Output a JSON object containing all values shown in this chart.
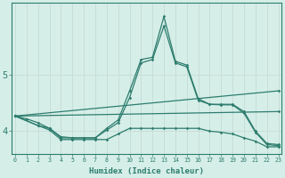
{
  "xlabel": "Humidex (Indice chaleur)",
  "background_color": "#d6eee8",
  "line_color": "#2d7d6e",
  "grid_color": "#c8ddd8",
  "xmin": 0,
  "xmax": 23,
  "ylim": [
    3.6,
    6.3
  ],
  "yticks": [
    4,
    5
  ],
  "lines": [
    {
      "x": [
        0,
        1,
        2,
        3,
        4,
        5,
        6,
        7,
        8,
        9,
        10,
        11,
        12,
        13,
        14,
        15,
        16,
        17,
        18,
        19,
        20,
        21,
        22,
        23
      ],
      "y": [
        4.27,
        4.22,
        4.15,
        4.05,
        3.88,
        3.88,
        3.88,
        3.88,
        4.05,
        4.2,
        4.72,
        5.28,
        5.32,
        6.05,
        5.25,
        5.18,
        4.58,
        4.48,
        4.48,
        4.48,
        4.35,
        4.0,
        3.78,
        3.76
      ]
    },
    {
      "x": [
        0,
        2,
        3,
        4,
        5,
        6,
        7,
        8,
        9,
        10,
        11,
        12,
        13,
        14,
        15,
        16,
        17,
        18,
        19,
        20,
        21,
        22,
        23
      ],
      "y": [
        4.27,
        4.1,
        4.05,
        3.9,
        3.88,
        3.88,
        3.88,
        4.02,
        4.15,
        4.6,
        5.22,
        5.28,
        5.88,
        5.22,
        5.15,
        4.55,
        4.48,
        4.47,
        4.47,
        4.32,
        3.98,
        3.76,
        3.74
      ]
    },
    {
      "x": [
        0,
        23
      ],
      "y": [
        4.27,
        4.72
      ]
    },
    {
      "x": [
        0,
        23
      ],
      "y": [
        4.27,
        4.35
      ]
    },
    {
      "x": [
        0,
        2,
        3,
        4,
        5,
        6,
        7,
        8,
        9,
        10,
        11,
        12,
        13,
        14,
        15,
        16,
        17,
        18,
        19,
        20,
        21,
        22,
        23
      ],
      "y": [
        4.27,
        4.1,
        4.02,
        3.85,
        3.85,
        3.85,
        3.85,
        3.85,
        3.95,
        4.05,
        4.05,
        4.05,
        4.05,
        4.05,
        4.05,
        4.05,
        4.0,
        3.98,
        3.95,
        3.88,
        3.82,
        3.72,
        3.72
      ]
    }
  ]
}
